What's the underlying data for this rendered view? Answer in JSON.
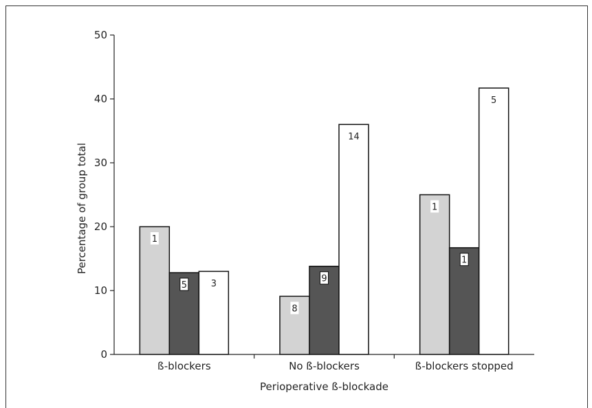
{
  "chart_data": {
    "type": "bar",
    "title": "",
    "xlabel": "Perioperative ß-blockade",
    "ylabel": "Percentage of group total",
    "ylim": [
      0,
      50
    ],
    "yticks": [
      "0",
      "10",
      "20",
      "30",
      "40",
      "50"
    ],
    "grid": false,
    "categories": [
      "ß-blockers",
      "No ß-blockers",
      "ß-blockers stopped"
    ],
    "series": [
      {
        "values": [
          20,
          9.1,
          25
        ],
        "color": "#d3d3d3",
        "labels": [
          "1",
          "8",
          "1"
        ]
      },
      {
        "values": [
          12.8,
          13.8,
          16.7
        ],
        "color": "#555555",
        "labels": [
          "5",
          "9",
          "1"
        ]
      },
      {
        "values": [
          13,
          36,
          41.7
        ],
        "color": "#ffffff",
        "labels": [
          "3",
          "14",
          "5"
        ]
      }
    ]
  }
}
